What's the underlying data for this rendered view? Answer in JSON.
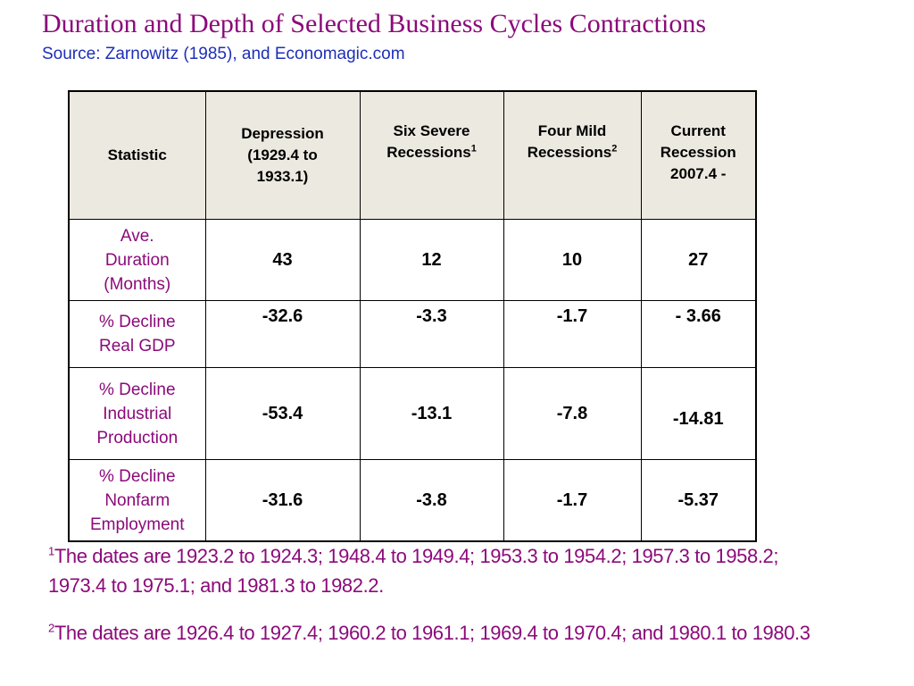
{
  "title": "Duration and Depth of Selected Business Cycles Contractions",
  "subtitle": "Source: Zarnowitz (1985), and Economagic.com",
  "colors": {
    "title": "#8b0a7a",
    "subtitle": "#1d2fb8",
    "header_bg": "#ece9e0"
  },
  "table": {
    "headers": [
      {
        "lines": [
          "Statistic"
        ],
        "sup": ""
      },
      {
        "lines": [
          "Depression",
          "(1929.4 to",
          "1933.1)"
        ],
        "sup": ""
      },
      {
        "lines": [
          "Six Severe",
          "Recessions"
        ],
        "sup": "1"
      },
      {
        "lines": [
          "Four Mild",
          "Recessions"
        ],
        "sup": "2"
      },
      {
        "lines": [
          "Current",
          "Recession",
          "2007.4 -"
        ],
        "sup": ""
      }
    ],
    "rows": [
      {
        "label": [
          "Ave.",
          "Duration",
          "(Months)"
        ],
        "values": [
          "43",
          "12",
          "10",
          "27"
        ]
      },
      {
        "label": [
          "% Decline",
          "Real GDP"
        ],
        "values": [
          "-32.6",
          "-3.3",
          "-1.7",
          "- 3.66"
        ]
      },
      {
        "label": [
          "% Decline",
          "Industrial",
          "Production"
        ],
        "values": [
          "-53.4",
          "-13.1",
          "-7.8",
          "-14.81"
        ]
      },
      {
        "label": [
          "% Decline",
          "Nonfarm",
          "Employment"
        ],
        "values": [
          "-31.6",
          "-3.8",
          "-1.7",
          "-5.37"
        ]
      }
    ]
  },
  "footnotes": [
    {
      "mark": "1",
      "lines": [
        "The dates are 1923.2 to 1924.3; 1948.4 to 1949.4; 1953.3 to 1954.2; 1957.3 to 1958.2;",
        "1973.4 to 1975.1; and 1981.3 to 1982.2."
      ]
    },
    {
      "mark": "2",
      "lines": [
        "The dates are 1926.4 to 1927.4; 1960.2 to 1961.1; 1969.4 to 1970.4; and 1980.1 to 1980.3"
      ]
    }
  ]
}
